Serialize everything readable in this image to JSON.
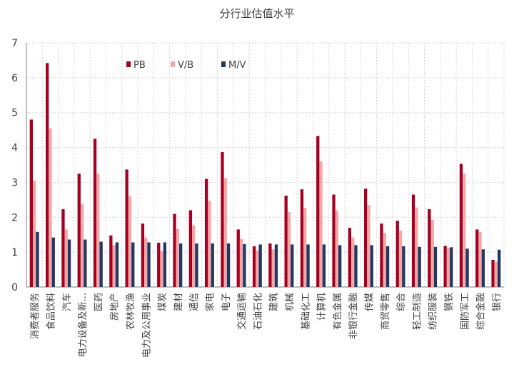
{
  "chart_data": {
    "type": "bar",
    "title": "分行业估值水平",
    "xlabel": "",
    "ylabel": "",
    "ylim": [
      0,
      7
    ],
    "yticks": [
      0,
      1,
      2,
      3,
      4,
      5,
      6,
      7
    ],
    "grid": true,
    "legend_position": "top-left (inside plot)",
    "categories": [
      "消费者服务",
      "食品饮料",
      "汽车",
      "电力设备及新...",
      "医药",
      "房地产",
      "农林牧渔",
      "电力及公用事业",
      "煤炭",
      "建材",
      "通信",
      "家电",
      "电子",
      "交通运输",
      "石油石化",
      "建筑",
      "机械",
      "基础化工",
      "计算机",
      "有色金属",
      "非银行金融",
      "传媒",
      "商贸零售",
      "综合",
      "轻工制造",
      "纺织服装",
      "钢铁",
      "国防军工",
      "综合金融",
      "银行"
    ],
    "series": [
      {
        "name": "PB",
        "color": "#A50021",
        "values": [
          4.8,
          6.42,
          2.23,
          3.25,
          4.25,
          1.48,
          3.37,
          1.82,
          1.27,
          2.1,
          2.2,
          3.1,
          3.87,
          1.65,
          1.17,
          1.25,
          2.62,
          2.8,
          4.33,
          2.65,
          1.7,
          2.82,
          1.82,
          1.9,
          2.65,
          2.23,
          1.18,
          3.53,
          1.65,
          0.78
        ]
      },
      {
        "name": "V/B",
        "color": "#F2A7A7",
        "values": [
          3.05,
          4.55,
          1.65,
          2.38,
          3.25,
          1.2,
          2.6,
          1.42,
          1.03,
          1.67,
          1.77,
          2.47,
          3.12,
          1.38,
          1.05,
          1.08,
          2.15,
          2.27,
          3.6,
          2.2,
          1.42,
          2.35,
          1.55,
          1.62,
          2.28,
          1.93,
          1.12,
          3.25,
          1.58,
          0.73
        ]
      },
      {
        "name": "M/V",
        "color": "#1F3864",
        "values": [
          1.58,
          1.42,
          1.36,
          1.36,
          1.3,
          1.28,
          1.28,
          1.28,
          1.28,
          1.25,
          1.25,
          1.25,
          1.25,
          1.23,
          1.22,
          1.22,
          1.22,
          1.22,
          1.22,
          1.2,
          1.2,
          1.2,
          1.17,
          1.17,
          1.15,
          1.15,
          1.14,
          1.1,
          1.08,
          1.07
        ]
      }
    ]
  }
}
